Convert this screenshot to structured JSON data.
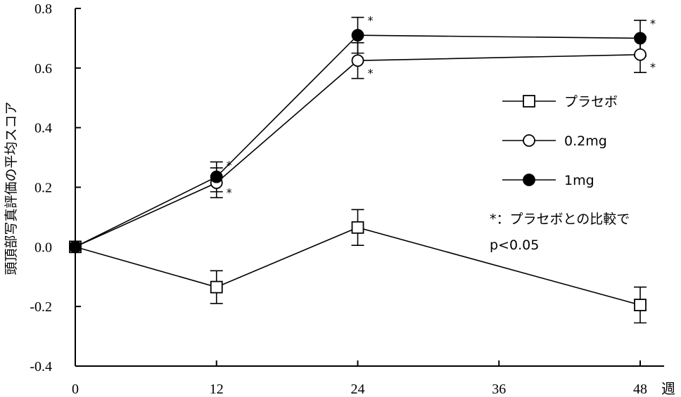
{
  "chart_data": {
    "type": "line",
    "ylabel": "頭頂部写真評価の平均スコア",
    "x_unit_label": "週",
    "x_ticks": [
      0,
      12,
      24,
      36,
      48
    ],
    "y_ticks": [
      -0.4,
      -0.2,
      0.0,
      0.2,
      0.4,
      0.6,
      0.8
    ],
    "y_tick_labels": [
      "-0.4",
      "-0.2",
      "0.0",
      "0.2",
      "0.4",
      "0.6",
      "0.8"
    ],
    "xlim": [
      0,
      48
    ],
    "ylim": [
      -0.4,
      0.8
    ],
    "series": [
      {
        "name": "プラセボ",
        "marker": "open-square",
        "color": "#000000",
        "x": [
          0,
          12,
          24,
          48
        ],
        "y": [
          0.0,
          -0.135,
          0.065,
          -0.195
        ],
        "err": [
          0,
          0.055,
          0.06,
          0.06
        ],
        "stars": [
          {
            "x_index": 1,
            "position": "none"
          },
          {
            "x_index": 2,
            "position": "none"
          },
          {
            "x_index": 3,
            "position": "none"
          }
        ]
      },
      {
        "name": "0.2mg",
        "marker": "open-circle",
        "color": "#000000",
        "x": [
          0,
          12,
          24,
          48
        ],
        "y": [
          0.0,
          0.215,
          0.625,
          0.645
        ],
        "err": [
          0,
          0.05,
          0.06,
          0.06
        ]
      },
      {
        "name": "1mg",
        "marker": "filled-circle",
        "color": "#000000",
        "x": [
          0,
          12,
          24,
          48
        ],
        "y": [
          0.0,
          0.235,
          0.71,
          0.7
        ],
        "err": [
          0,
          0.05,
          0.06,
          0.06
        ]
      }
    ],
    "significance_marks": [
      {
        "series": "1mg",
        "x": 12,
        "side": "above",
        "text": "*"
      },
      {
        "series": "0.2mg",
        "x": 12,
        "side": "below",
        "text": "*"
      },
      {
        "series": "1mg",
        "x": 24,
        "side": "above",
        "text": "*"
      },
      {
        "series": "0.2mg",
        "x": 24,
        "side": "below",
        "text": "*"
      },
      {
        "series": "1mg",
        "x": 48,
        "side": "above",
        "text": "*"
      },
      {
        "series": "0.2mg",
        "x": 48,
        "side": "below",
        "text": "*"
      }
    ],
    "legend_placement": "right",
    "note_lines": [
      "*：プラセボとの比較で",
      "p<0.05"
    ],
    "grid": false
  }
}
